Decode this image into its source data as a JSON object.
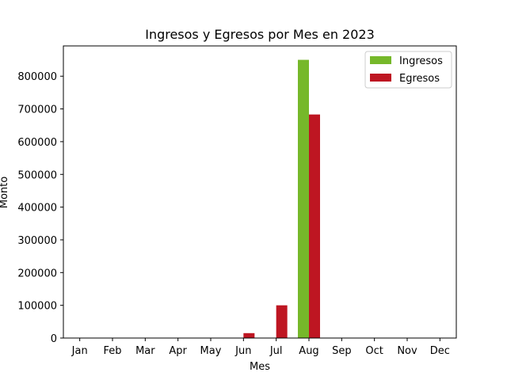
{
  "chart_data": {
    "type": "bar",
    "title": "Ingresos y Egresos por Mes en 2023",
    "xlabel": "Mes",
    "ylabel": "Monto",
    "categories": [
      "Jan",
      "Feb",
      "Mar",
      "Apr",
      "May",
      "Jun",
      "Jul",
      "Aug",
      "Sep",
      "Oct",
      "Nov",
      "Dec"
    ],
    "series": [
      {
        "name": "Ingresos",
        "color": "#76b82a",
        "values": [
          0,
          0,
          0,
          0,
          0,
          0,
          0,
          850000,
          0,
          0,
          0,
          0
        ]
      },
      {
        "name": "Egresos",
        "color": "#be1622",
        "values": [
          0,
          0,
          0,
          0,
          0,
          15000,
          100000,
          683000,
          0,
          0,
          0,
          0
        ]
      }
    ],
    "ylim": [
      0,
      892500
    ],
    "yticks": [
      0,
      100000,
      200000,
      300000,
      400000,
      500000,
      600000,
      700000,
      800000
    ],
    "grid": false,
    "legend_position": "top-right"
  }
}
